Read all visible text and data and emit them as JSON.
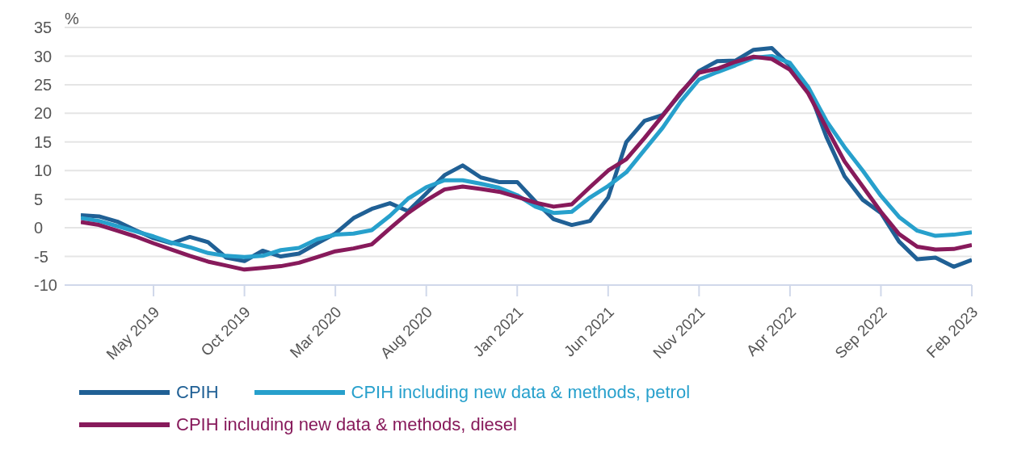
{
  "chart_data": {
    "type": "line",
    "ylabel": "%",
    "categories": [
      null,
      null,
      null,
      null,
      "May 2019",
      null,
      null,
      null,
      null,
      "Oct 2019",
      null,
      null,
      null,
      null,
      "Mar 2020",
      null,
      null,
      null,
      null,
      "Aug 2020",
      null,
      null,
      null,
      null,
      "Jan 2021",
      null,
      null,
      null,
      null,
      "Jun 2021",
      null,
      null,
      null,
      null,
      "Nov 2021",
      null,
      null,
      null,
      null,
      "Apr 2022",
      null,
      null,
      null,
      null,
      "Sep 2022",
      null,
      null,
      null,
      null,
      "Feb 2023"
    ],
    "series": [
      {
        "name": "CPIH",
        "color": "#206095",
        "values": [
          2.2,
          2.0,
          1.1,
          -0.4,
          -1.8,
          -2.7,
          -1.6,
          -2.5,
          -5.2,
          -5.8,
          -4.0,
          -5.0,
          -4.5,
          -2.7,
          -1.0,
          1.7,
          3.3,
          4.3,
          2.9,
          6.0,
          9.2,
          10.9,
          8.8,
          8.0,
          8.0,
          4.6,
          1.5,
          0.5,
          1.2,
          5.3,
          15.0,
          18.7,
          19.7,
          23.5,
          27.4,
          29.1,
          29.2,
          31.1,
          31.4,
          28.3,
          24.4,
          15.9,
          9.0,
          4.9,
          2.6,
          -2.4,
          -5.5,
          -5.2,
          -6.8,
          -5.6
        ]
      },
      {
        "name": "CPIH including new data & methods, petrol",
        "color": "#27a0cc",
        "values": [
          1.7,
          1.2,
          0.3,
          -0.6,
          -1.5,
          -2.6,
          -3.4,
          -4.4,
          -4.9,
          -5.1,
          -4.9,
          -3.9,
          -3.5,
          -2.0,
          -1.2,
          -1.0,
          -0.4,
          2.1,
          5.1,
          7.1,
          8.3,
          8.3,
          7.7,
          7.0,
          5.7,
          3.7,
          2.6,
          2.8,
          5.3,
          7.3,
          9.7,
          13.6,
          17.5,
          22.1,
          25.9,
          27.2,
          28.4,
          29.7,
          30.0,
          28.8,
          24.6,
          18.7,
          14.1,
          10.0,
          5.6,
          1.9,
          -0.5,
          -1.4,
          -1.2,
          -0.8
        ]
      },
      {
        "name": "CPIH including new data & methods, diesel",
        "color": "#871a5b",
        "values": [
          1.0,
          0.5,
          -0.5,
          -1.5,
          -2.7,
          -3.8,
          -4.9,
          -5.9,
          -6.6,
          -7.3,
          -7.0,
          -6.7,
          -6.1,
          -5.1,
          -4.1,
          -3.6,
          -2.9,
          -0.1,
          2.6,
          4.8,
          6.7,
          7.2,
          6.8,
          6.3,
          5.4,
          4.4,
          3.7,
          4.1,
          7.1,
          10.0,
          12.0,
          15.7,
          19.6,
          23.7,
          27.1,
          27.8,
          29.0,
          29.9,
          29.5,
          27.6,
          23.5,
          17.5,
          11.6,
          7.2,
          2.8,
          -1.1,
          -3.3,
          -3.8,
          -3.7,
          -3.0
        ]
      }
    ],
    "ylim": [
      -10,
      35
    ],
    "yticks": [
      -10,
      -5,
      0,
      5,
      10,
      15,
      20,
      25,
      30,
      35
    ],
    "grid": "y",
    "legend": "bottom",
    "marker": "none",
    "line_style": "solid"
  }
}
